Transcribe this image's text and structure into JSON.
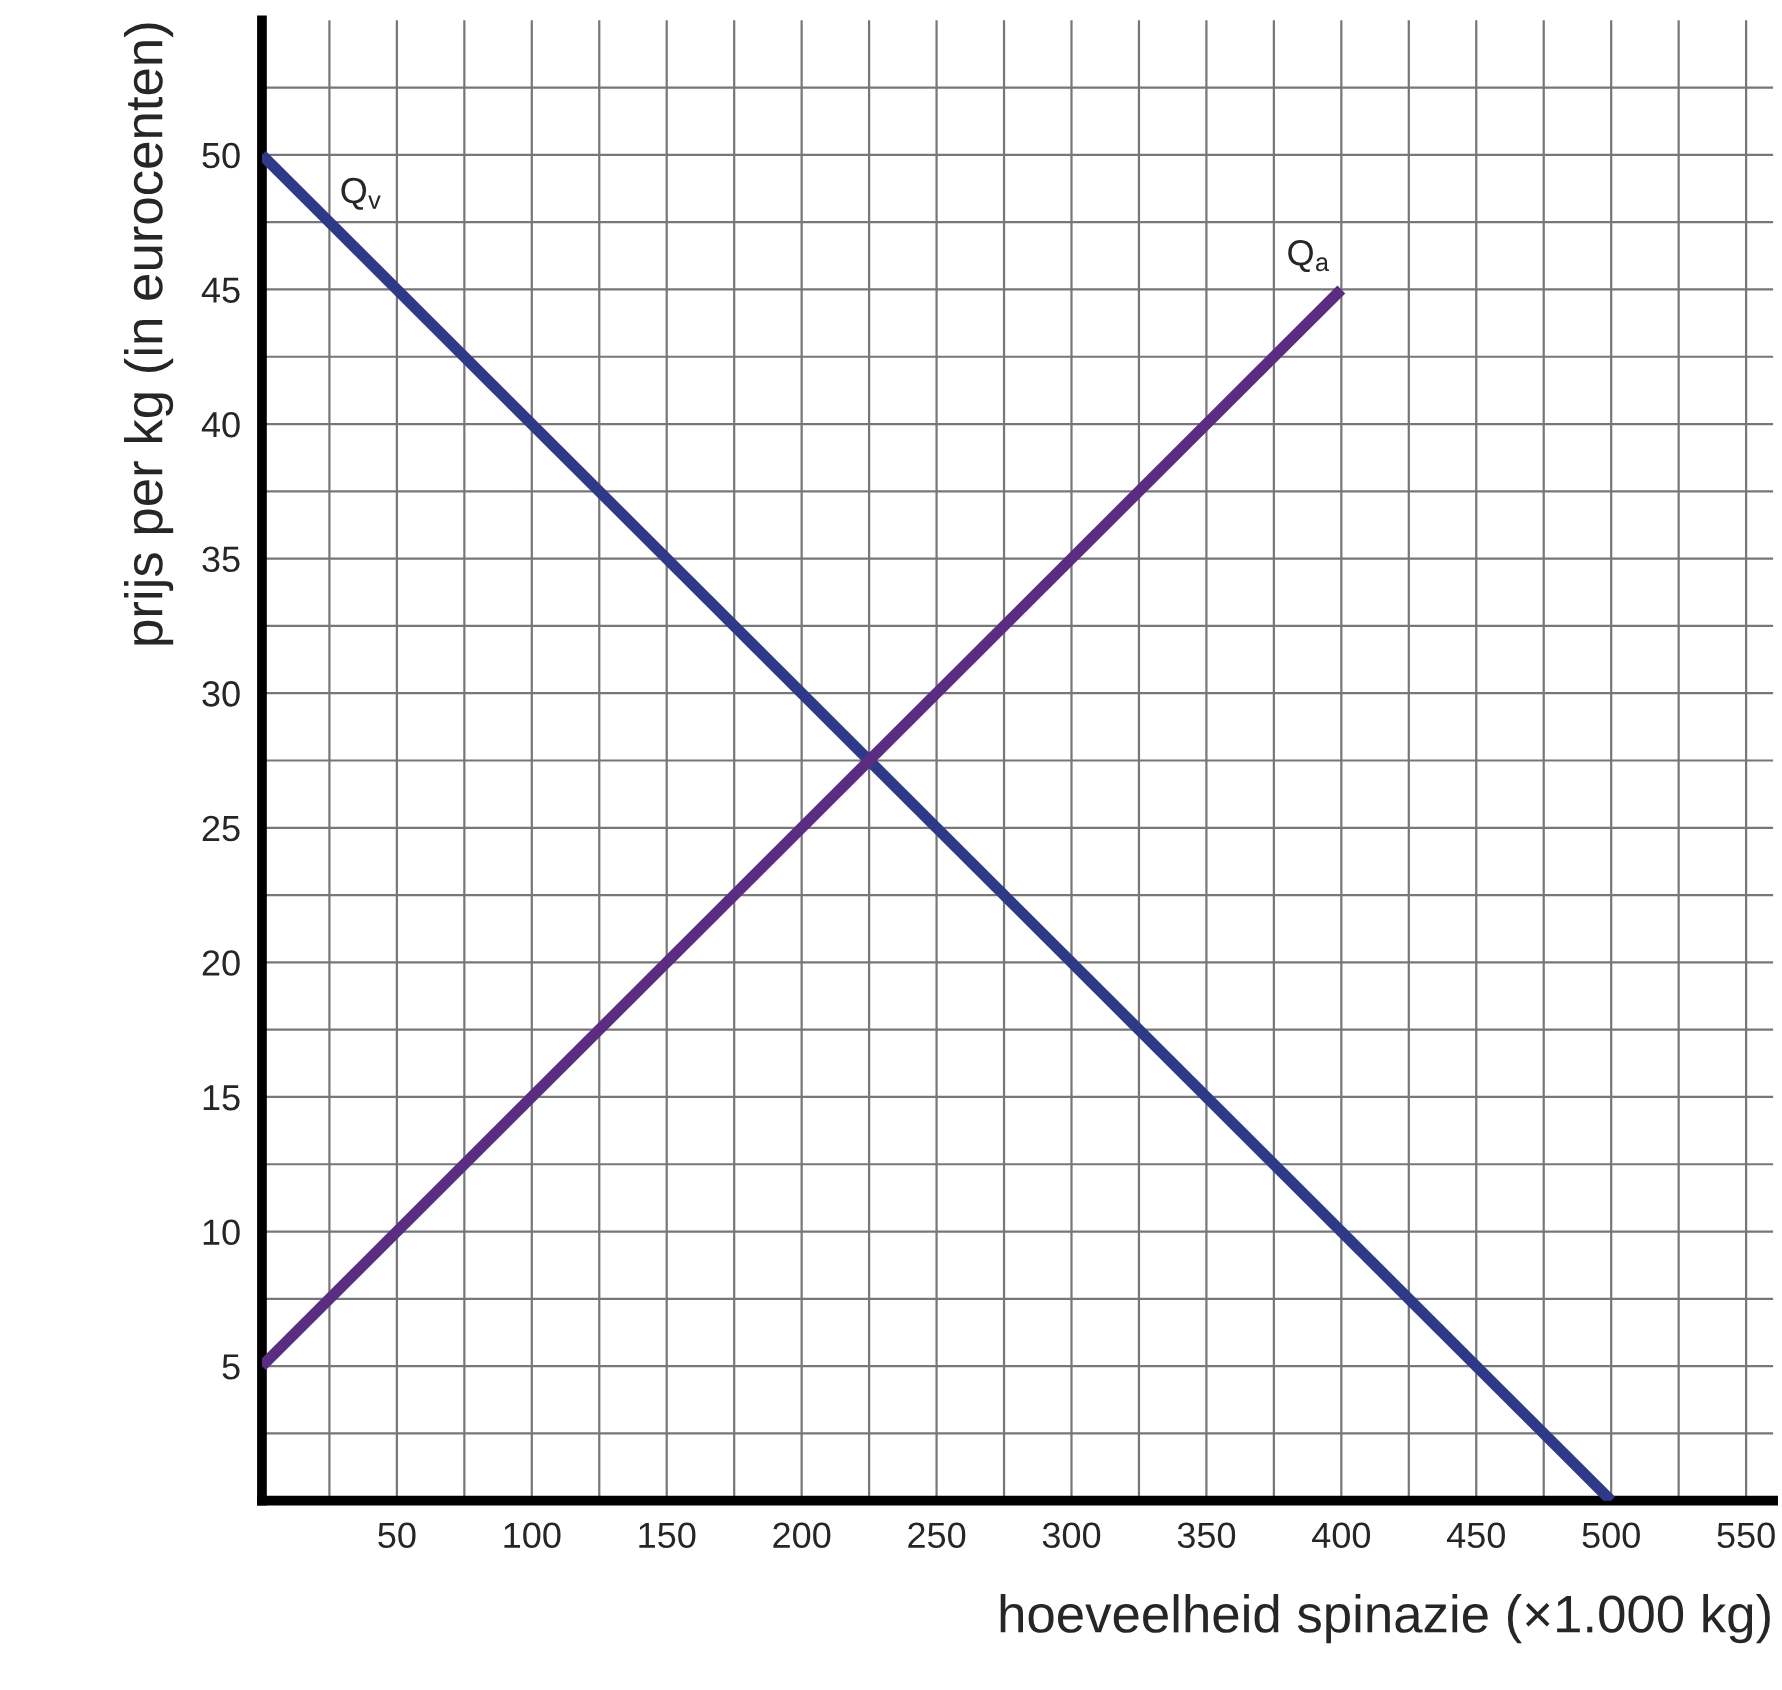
{
  "chart_data": {
    "type": "line",
    "xlabel": "hoeveelheid spinazie (×1.000 kg)",
    "ylabel": "prijs per kg (in eurocenten)",
    "series": [
      {
        "name": "Q$_{v}$",
        "color": "#2e3a87",
        "x": [
          0,
          500
        ],
        "values": [
          50,
          0
        ]
      },
      {
        "name": "Q$_{a}$",
        "color": "#5b2d82",
        "x": [
          0,
          400
        ],
        "values": [
          5,
          45
        ]
      }
    ],
    "xlim": [
      0,
      560
    ],
    "ylim": [
      0,
      55
    ],
    "xticks": [
      {
        "value": 25,
        "label": null
      },
      50,
      {
        "value": 75,
        "label": null
      },
      100,
      {
        "value": 125,
        "label": null
      },
      150,
      {
        "value": 175,
        "label": null
      },
      200,
      {
        "value": 225,
        "label": null
      },
      250,
      {
        "value": 275,
        "label": null
      },
      300,
      {
        "value": 325,
        "label": null
      },
      350,
      {
        "value": 375,
        "label": null
      },
      400,
      {
        "value": 425,
        "label": null
      },
      450,
      {
        "value": 475,
        "label": null
      },
      500,
      {
        "value": 525,
        "label": null
      },
      550
    ],
    "yticks": [
      {
        "value": 2.5,
        "label": null
      },
      5,
      {
        "value": 7.5,
        "label": null
      },
      10,
      {
        "value": 12.5,
        "label": null
      },
      15,
      {
        "value": 17.5,
        "label": null
      },
      20,
      {
        "value": 22.5,
        "label": null
      },
      25,
      {
        "value": 27.5,
        "label": null
      },
      30,
      {
        "value": 32.5,
        "label": null
      },
      35,
      {
        "value": 37.5,
        "label": null
      },
      40,
      {
        "value": 42.5,
        "label": null
      },
      45,
      {
        "value": 47.5,
        "label": null
      },
      50,
      {
        "value": 52.5,
        "label": null
      }
    ],
    "grid": true,
    "legend": false,
    "marker": "none",
    "line_style": "solid"
  }
}
